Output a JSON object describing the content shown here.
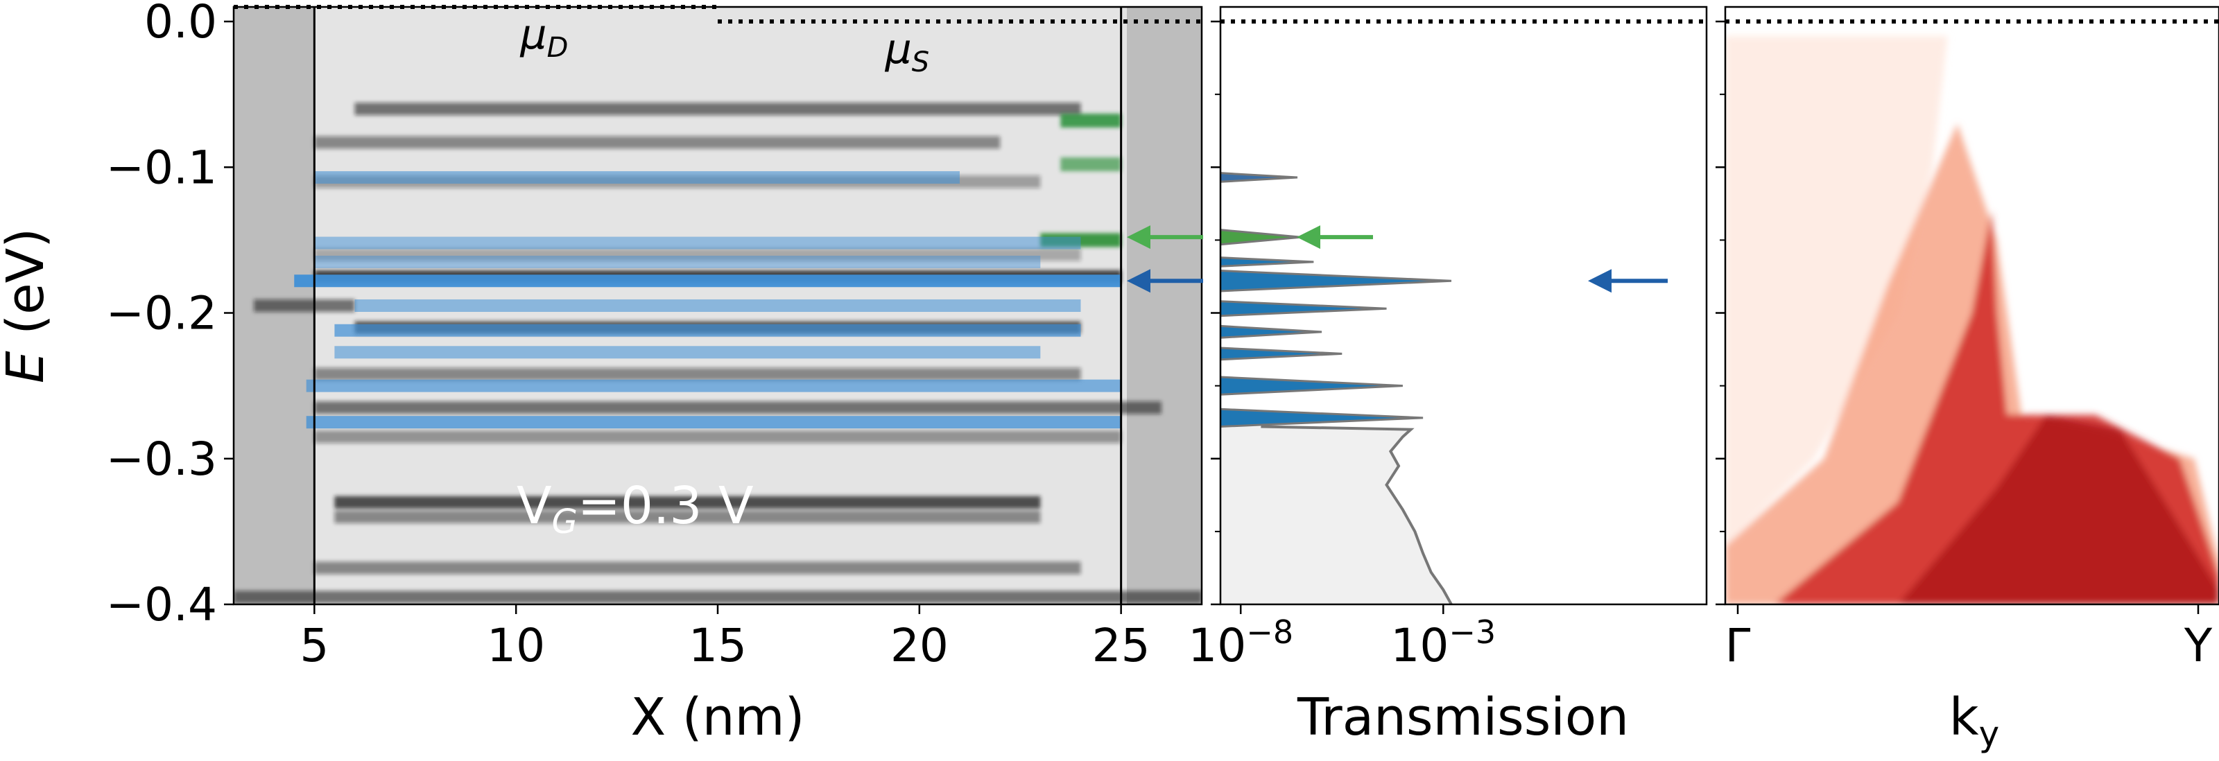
{
  "chart_data": [
    {
      "type": "heatmap",
      "panel": "left",
      "xlabel": "X (nm)",
      "ylabel": "E (eV)",
      "xlim": [
        3,
        27
      ],
      "ylim": [
        -0.4,
        0.01
      ],
      "xticks": [
        5,
        10,
        15,
        20,
        25
      ],
      "xtick_labels": [
        "5",
        "10",
        "15",
        "20",
        "25"
      ],
      "yticks": [
        0.0,
        -0.1,
        -0.2,
        -0.3,
        -0.4
      ],
      "ytick_labels": [
        "0.0",
        "−0.1",
        "−0.2",
        "−0.3",
        "−0.4"
      ],
      "annotation": "V_G=0.3 V",
      "annotation_text": {
        "prefix": "V",
        "sub": "G",
        "suffix": "=0.3 V"
      },
      "mu_D": {
        "label": "μ",
        "sub": "D",
        "energy": 0.01,
        "x_range": [
          3,
          15
        ]
      },
      "mu_S": {
        "label": "μ",
        "sub": "S",
        "energy": 0.0,
        "x_range": [
          15,
          27
        ]
      },
      "vertical_lines": [
        5,
        25
      ],
      "dark_bands": [
        {
          "e": -0.06,
          "x0": 6.0,
          "x1": 24.0,
          "o": 0.55
        },
        {
          "e": -0.083,
          "x0": 5.0,
          "x1": 22.0,
          "o": 0.45
        },
        {
          "e": -0.11,
          "x0": 5.0,
          "x1": 23.0,
          "o": 0.35
        },
        {
          "e": -0.16,
          "x0": 5.0,
          "x1": 24.0,
          "o": 0.3
        },
        {
          "e": -0.175,
          "x0": 5.0,
          "x1": 25.0,
          "o": 0.8
        },
        {
          "e": -0.195,
          "x0": 3.5,
          "x1": 6.0,
          "o": 0.55
        },
        {
          "e": -0.21,
          "x0": 6.0,
          "x1": 24.0,
          "o": 0.7
        },
        {
          "e": -0.242,
          "x0": 5.0,
          "x1": 24.0,
          "o": 0.45
        },
        {
          "e": -0.265,
          "x0": 5.0,
          "x1": 26.0,
          "o": 0.55
        },
        {
          "e": -0.285,
          "x0": 5.0,
          "x1": 25.0,
          "o": 0.4
        },
        {
          "e": -0.33,
          "x0": 5.5,
          "x1": 23.0,
          "o": 0.75
        },
        {
          "e": -0.34,
          "x0": 5.5,
          "x1": 23.0,
          "o": 0.45
        },
        {
          "e": -0.375,
          "x0": 5.0,
          "x1": 24.0,
          "o": 0.45
        },
        {
          "e": -0.395,
          "x0": 3.0,
          "x1": 27.0,
          "o": 0.55
        }
      ],
      "blue_states": [
        {
          "e": -0.107,
          "x0": 5.0,
          "x1": 21.0,
          "o": 0.55
        },
        {
          "e": -0.152,
          "x0": 5.0,
          "x1": 24.0,
          "o": 0.5
        },
        {
          "e": -0.165,
          "x0": 5.0,
          "x1": 23.0,
          "o": 0.45
        },
        {
          "e": -0.178,
          "x0": 4.5,
          "x1": 25.0,
          "o": 0.95
        },
        {
          "e": -0.195,
          "x0": 6.0,
          "x1": 24.0,
          "o": 0.55
        },
        {
          "e": -0.212,
          "x0": 5.5,
          "x1": 24.0,
          "o": 0.7
        },
        {
          "e": -0.227,
          "x0": 5.5,
          "x1": 23.0,
          "o": 0.55
        },
        {
          "e": -0.25,
          "x0": 4.8,
          "x1": 25.0,
          "o": 0.65
        },
        {
          "e": -0.275,
          "x0": 4.8,
          "x1": 25.0,
          "o": 0.75
        }
      ],
      "green_states": [
        {
          "e": -0.068,
          "x0": 23.5,
          "x1": 25.0,
          "o": 0.8
        },
        {
          "e": -0.098,
          "x0": 23.5,
          "x1": 25.0,
          "o": 0.6
        },
        {
          "e": -0.15,
          "x0": 23.0,
          "x1": 25.0,
          "o": 0.85
        }
      ],
      "arrows": [
        {
          "color": "#4caf50",
          "energy": -0.148
        },
        {
          "color": "#1f5fa8",
          "energy": -0.178
        }
      ]
    },
    {
      "type": "line",
      "panel": "middle",
      "xlabel": "Transmission",
      "xscale": "log",
      "xlim_log10": [
        -8.5,
        3.5
      ],
      "xticks_log10": [
        -8,
        -3
      ],
      "xtick_labels": [
        {
          "base": "10",
          "exp": "−8"
        },
        {
          "base": "10",
          "exp": "−3"
        }
      ],
      "ylim": [
        -0.4,
        0.01
      ],
      "mu_energy": 0.0,
      "continuum": [
        {
          "e": -0.278,
          "t": -7.5
        },
        {
          "e": -0.28,
          "t": -3.8
        },
        {
          "e": -0.285,
          "t": -4.0
        },
        {
          "e": -0.295,
          "t": -4.3
        },
        {
          "e": -0.305,
          "t": -4.1
        },
        {
          "e": -0.318,
          "t": -4.4
        },
        {
          "e": -0.335,
          "t": -4.0
        },
        {
          "e": -0.35,
          "t": -3.7
        },
        {
          "e": -0.365,
          "t": -3.5
        },
        {
          "e": -0.378,
          "t": -3.3
        },
        {
          "e": -0.39,
          "t": -3.0
        },
        {
          "e": -0.4,
          "t": -2.8
        }
      ],
      "peaks": [
        {
          "e": -0.107,
          "t": -6.6,
          "w": 0.006,
          "color": "#3a6ea5"
        },
        {
          "e": -0.148,
          "t": -6.5,
          "w": 0.01,
          "color": "#4aa046"
        },
        {
          "e": -0.165,
          "t": -6.2,
          "w": 0.006,
          "color": "#1f77b4"
        },
        {
          "e": -0.178,
          "t": -2.8,
          "w": 0.014,
          "color": "#1f77b4"
        },
        {
          "e": -0.197,
          "t": -4.4,
          "w": 0.01,
          "color": "#1f77b4"
        },
        {
          "e": -0.213,
          "t": -6.0,
          "w": 0.008,
          "color": "#1f77b4"
        },
        {
          "e": -0.228,
          "t": -5.5,
          "w": 0.008,
          "color": "#1f77b4"
        },
        {
          "e": -0.25,
          "t": -4.0,
          "w": 0.012,
          "color": "#1f77b4"
        },
        {
          "e": -0.272,
          "t": -3.5,
          "w": 0.012,
          "color": "#1f77b4"
        }
      ],
      "arrows": [
        {
          "color": "#4caf50",
          "energy": -0.148
        },
        {
          "color": "#1f5fa8",
          "energy": -0.178
        }
      ]
    },
    {
      "type": "heatmap",
      "panel": "right",
      "xlabel": "k_y",
      "xlabel_text": {
        "base": "k",
        "sub": "y"
      },
      "xticks": [
        0,
        1
      ],
      "xtick_labels": [
        "Γ",
        "Y"
      ],
      "ylim": [
        -0.4,
        0.01
      ],
      "mu_energy": 0.0,
      "colormap": "Reds",
      "regions": [
        {
          "points": [
            [
              0.0,
              -0.01
            ],
            [
              0.45,
              -0.01
            ],
            [
              0.42,
              -0.1
            ],
            [
              0.35,
              -0.2
            ],
            [
              0.18,
              -0.3
            ],
            [
              0.0,
              -0.36
            ]
          ],
          "color": "#fde4d8",
          "o": 0.7
        },
        {
          "points": [
            [
              0.0,
              -0.4
            ],
            [
              0.0,
              -0.36
            ],
            [
              0.2,
              -0.3
            ],
            [
              0.33,
              -0.18
            ],
            [
              0.47,
              -0.07
            ],
            [
              0.55,
              -0.15
            ],
            [
              0.6,
              -0.27
            ],
            [
              0.75,
              -0.28
            ],
            [
              0.95,
              -0.3
            ],
            [
              1.0,
              -0.37
            ],
            [
              1.0,
              -0.4
            ]
          ],
          "color": "#f7a487",
          "o": 0.85
        },
        {
          "points": [
            [
              0.1,
              -0.4
            ],
            [
              0.35,
              -0.33
            ],
            [
              0.5,
              -0.2
            ],
            [
              0.54,
              -0.13
            ],
            [
              0.55,
              -0.2
            ],
            [
              0.57,
              -0.27
            ],
            [
              0.75,
              -0.27
            ],
            [
              0.92,
              -0.3
            ],
            [
              1.0,
              -0.38
            ],
            [
              1.0,
              -0.4
            ]
          ],
          "color": "#d3322c",
          "o": 0.9
        },
        {
          "points": [
            [
              0.35,
              -0.4
            ],
            [
              0.55,
              -0.32
            ],
            [
              0.65,
              -0.27
            ],
            [
              0.8,
              -0.28
            ],
            [
              1.0,
              -0.39
            ],
            [
              1.0,
              -0.4
            ]
          ],
          "color": "#a91016",
          "o": 0.75
        }
      ]
    }
  ]
}
